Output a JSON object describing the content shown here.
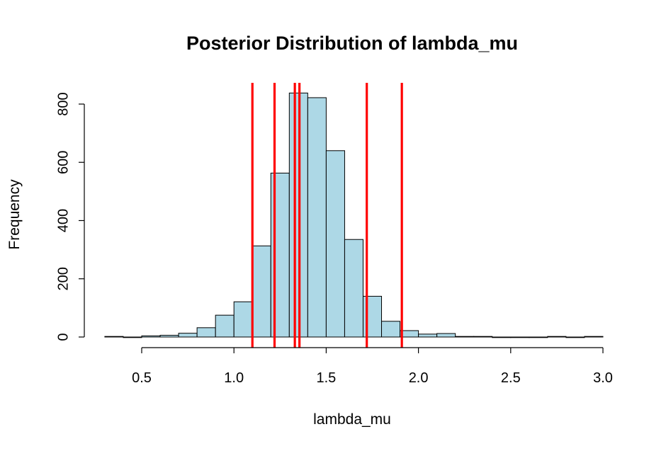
{
  "chart_data": {
    "type": "bar",
    "title": "Posterior Distribution of lambda_mu",
    "xlabel": "lambda_mu",
    "ylabel": "Frequency",
    "xlim": [
      0.3,
      3.0
    ],
    "ylim": [
      0,
      880
    ],
    "x_ticks": [
      "0.5",
      "1.0",
      "1.5",
      "2.0",
      "2.5",
      "3.0"
    ],
    "y_ticks": [
      "0",
      "200",
      "400",
      "600",
      "800"
    ],
    "bin_width": 0.1,
    "bins": [
      {
        "start": 0.3,
        "count": 2
      },
      {
        "start": 0.4,
        "count": 0
      },
      {
        "start": 0.5,
        "count": 4
      },
      {
        "start": 0.6,
        "count": 6
      },
      {
        "start": 0.7,
        "count": 13
      },
      {
        "start": 0.8,
        "count": 32
      },
      {
        "start": 0.9,
        "count": 75
      },
      {
        "start": 1.0,
        "count": 121
      },
      {
        "start": 1.1,
        "count": 313
      },
      {
        "start": 1.2,
        "count": 563
      },
      {
        "start": 1.3,
        "count": 838
      },
      {
        "start": 1.4,
        "count": 822
      },
      {
        "start": 1.5,
        "count": 640
      },
      {
        "start": 1.6,
        "count": 335
      },
      {
        "start": 1.7,
        "count": 140
      },
      {
        "start": 1.8,
        "count": 54
      },
      {
        "start": 1.9,
        "count": 22
      },
      {
        "start": 2.0,
        "count": 10
      },
      {
        "start": 2.1,
        "count": 12
      },
      {
        "start": 2.2,
        "count": 2
      },
      {
        "start": 2.3,
        "count": 2
      },
      {
        "start": 2.4,
        "count": 0
      },
      {
        "start": 2.5,
        "count": 0
      },
      {
        "start": 2.6,
        "count": 0
      },
      {
        "start": 2.7,
        "count": 2
      },
      {
        "start": 2.8,
        "count": 0
      },
      {
        "start": 2.9,
        "count": 2
      }
    ],
    "vertical_lines": [
      1.1,
      1.22,
      1.33,
      1.355,
      1.72,
      1.91
    ],
    "bar_fill": "#add8e6",
    "bar_stroke": "#000000",
    "line_color": "#ff0000",
    "grid": false,
    "legend": "none"
  }
}
